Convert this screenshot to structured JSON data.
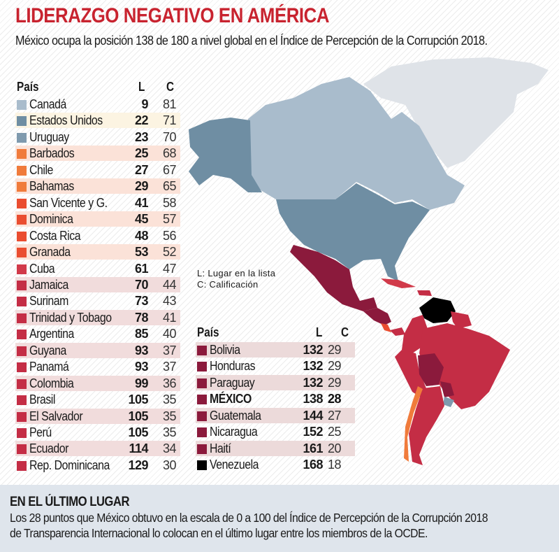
{
  "title": "LIDERAZGO NEGATIVO EN AMÉRICA",
  "subtitle": "México ocupa la posición 138 de 180 a nivel global en el Índice de Percepción de la Corrupción 2018.",
  "headers": {
    "country": "País",
    "l": "L",
    "c": "C"
  },
  "legend": {
    "l": "L: Lugar en la lista",
    "c": "C: Calificación"
  },
  "colors": {
    "title": "#c8232f",
    "canada": "#a9bccc",
    "usa": "#6f8ea3",
    "uruguay": "#7f9aae",
    "orange": "#f07b3b",
    "red_orange": "#ea4d30",
    "red": "#d13a4a",
    "crimson": "#c42d45",
    "maroon": "#8b1a3c",
    "black": "#000000"
  },
  "left_table": [
    {
      "name": "Canadá",
      "l": "9",
      "c": "81",
      "color": "#a9bccc"
    },
    {
      "name": "Estados Unidos",
      "l": "22",
      "c": "71",
      "color": "#6f8ea3"
    },
    {
      "name": "Uruguay",
      "l": "23",
      "c": "70",
      "color": "#7f9aae"
    },
    {
      "name": "Barbados",
      "l": "25",
      "c": "68",
      "color": "#f07b3b"
    },
    {
      "name": "Chile",
      "l": "27",
      "c": "67",
      "color": "#f07b3b"
    },
    {
      "name": "Bahamas",
      "l": "29",
      "c": "65",
      "color": "#f07b3b"
    },
    {
      "name": "San Vicente y G.",
      "l": "41",
      "c": "58",
      "color": "#ea4d30"
    },
    {
      "name": "Dominica",
      "l": "45",
      "c": "57",
      "color": "#ea4d30"
    },
    {
      "name": "Costa Rica",
      "l": "48",
      "c": "56",
      "color": "#ea4d30"
    },
    {
      "name": "Granada",
      "l": "53",
      "c": "52",
      "color": "#ea4d30"
    },
    {
      "name": "Cuba",
      "l": "61",
      "c": "47",
      "color": "#d13a4a"
    },
    {
      "name": "Jamaica",
      "l": "70",
      "c": "44",
      "color": "#c42d45"
    },
    {
      "name": "Surinam",
      "l": "73",
      "c": "43",
      "color": "#c42d45"
    },
    {
      "name": "Trinidad y Tobago",
      "l": "78",
      "c": "41",
      "color": "#c42d45"
    },
    {
      "name": "Argentina",
      "l": "85",
      "c": "40",
      "color": "#c42d45"
    },
    {
      "name": "Guyana",
      "l": "93",
      "c": "37",
      "color": "#c42d45"
    },
    {
      "name": "Panamá",
      "l": "93",
      "c": "37",
      "color": "#c42d45"
    },
    {
      "name": "Colombia",
      "l": "99",
      "c": "36",
      "color": "#c42d45"
    },
    {
      "name": "Brasil",
      "l": "105",
      "c": "35",
      "color": "#c42d45"
    },
    {
      "name": "El Salvador",
      "l": "105",
      "c": "35",
      "color": "#c42d45"
    },
    {
      "name": "Perú",
      "l": "105",
      "c": "35",
      "color": "#c42d45"
    },
    {
      "name": "Ecuador",
      "l": "114",
      "c": "34",
      "color": "#c42d45"
    },
    {
      "name": "Rep. Dominicana",
      "l": "129",
      "c": "30",
      "color": "#c42d45"
    }
  ],
  "right_table": [
    {
      "name": "Bolivia",
      "l": "132",
      "c": "29",
      "color": "#8b1a3c"
    },
    {
      "name": "Honduras",
      "l": "132",
      "c": "29",
      "color": "#8b1a3c"
    },
    {
      "name": "Paraguay",
      "l": "132",
      "c": "29",
      "color": "#8b1a3c"
    },
    {
      "name": "MÉXICO",
      "l": "138",
      "c": "28",
      "color": "#8b1a3c",
      "highlight": true
    },
    {
      "name": "Guatemala",
      "l": "144",
      "c": "27",
      "color": "#8b1a3c"
    },
    {
      "name": "Nicaragua",
      "l": "152",
      "c": "25",
      "color": "#8b1a3c"
    },
    {
      "name": "Haití",
      "l": "161",
      "c": "20",
      "color": "#8b1a3c"
    },
    {
      "name": "Venezuela",
      "l": "168",
      "c": "18",
      "color": "#000000"
    }
  ],
  "bottom": {
    "heading": "EN EL ÚLTIMO LUGAR",
    "text1": "Los 28 puntos que México obtuvo en la escala de 0 a 100 del Índice de Percepción de la Corrupción 2018",
    "text2": "de Transparencia Internacional lo colocan en el último lugar entre los miembros de la OCDE."
  }
}
